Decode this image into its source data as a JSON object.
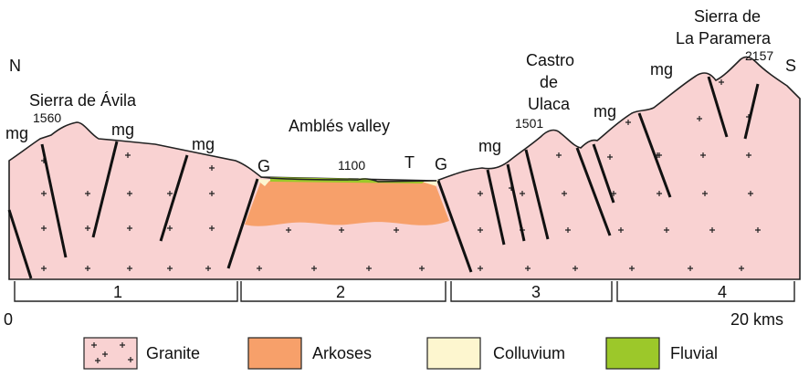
{
  "labels": {
    "north": "N",
    "south": "S",
    "sierra_avila": "Sierra de Ávila",
    "avila_elev": "1560",
    "mg": "mg",
    "amblés_valley": "Amblés valley",
    "valley_elev": "1100",
    "g": "G",
    "t": "T",
    "castro_1": "Castro",
    "castro_2": "de",
    "castro_3": "Ulaca",
    "ulaca_elev": "1501",
    "paramera_1": "Sierra de",
    "paramera_2": "La Paramera",
    "paramera_elev": "2157"
  },
  "scale": {
    "start": "0",
    "end": "20 kms"
  },
  "segments": [
    "1",
    "2",
    "3",
    "4"
  ],
  "legend": [
    {
      "label": "Granite",
      "color": "#f9d2d2",
      "pattern": "plus"
    },
    {
      "label": "Arkoses",
      "color": "#f7a06a"
    },
    {
      "label": "Colluvium",
      "color": "#fdf6cf"
    },
    {
      "label": "Fluvial",
      "color": "#9cc82a"
    }
  ],
  "colors": {
    "granite": "#f9d2d2",
    "arkoses": "#f7a06a",
    "colluvium": "#fdf6cf",
    "fluvial": "#9cc82a"
  }
}
